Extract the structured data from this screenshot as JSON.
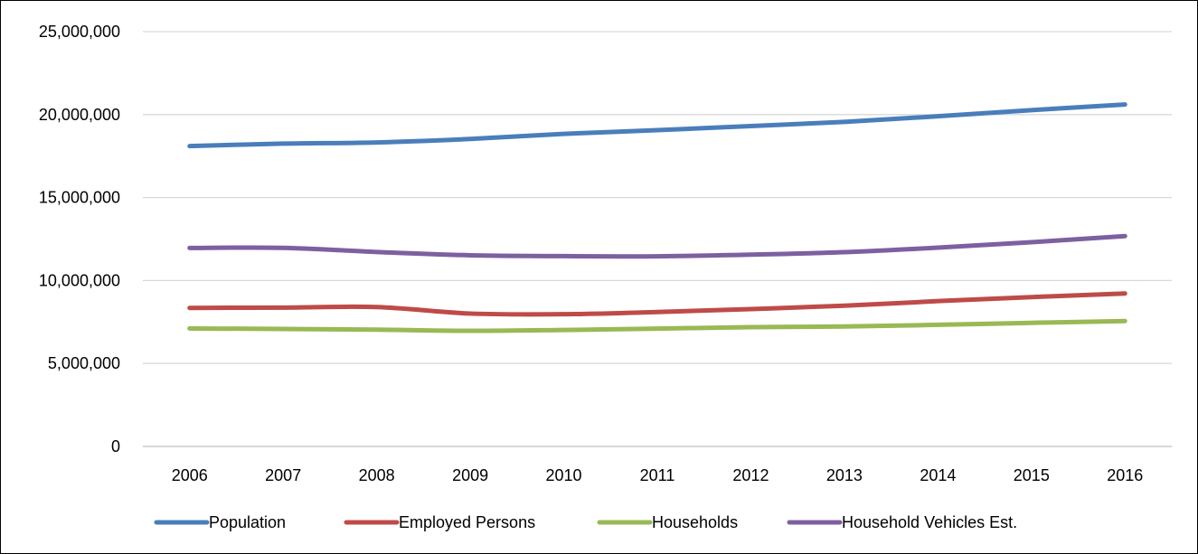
{
  "chart_data": {
    "type": "line",
    "title": "",
    "xlabel": "",
    "ylabel": "",
    "x": [
      "2006",
      "2007",
      "2008",
      "2009",
      "2010",
      "2011",
      "2012",
      "2013",
      "2014",
      "2015",
      "2016"
    ],
    "ylim": [
      0,
      25000000
    ],
    "yticks": [
      "0",
      "5,000,000",
      "10,000,000",
      "15,000,000",
      "20,000,000",
      "25,000,000"
    ],
    "ytick_values": [
      0,
      5000000,
      10000000,
      15000000,
      20000000,
      25000000
    ],
    "grid": true,
    "legend_position": "bottom",
    "series": [
      {
        "name": "Population",
        "color": "#4a7ebb",
        "values": [
          18100000,
          18250000,
          18320000,
          18530000,
          18840000,
          19060000,
          19310000,
          19560000,
          19900000,
          20270000,
          20610000
        ]
      },
      {
        "name": "Employed Persons",
        "color": "#be4b48",
        "values": [
          8350000,
          8370000,
          8400000,
          8010000,
          7970000,
          8100000,
          8280000,
          8480000,
          8760000,
          9000000,
          9220000
        ]
      },
      {
        "name": "Households",
        "color": "#98b954",
        "values": [
          7110000,
          7080000,
          7040000,
          6970000,
          7020000,
          7100000,
          7190000,
          7230000,
          7330000,
          7450000,
          7560000
        ]
      },
      {
        "name": "Household Vehicles Est.",
        "color": "#7d60a0",
        "values": [
          11960000,
          11970000,
          11720000,
          11520000,
          11470000,
          11460000,
          11560000,
          11710000,
          11980000,
          12310000,
          12680000
        ]
      }
    ]
  }
}
